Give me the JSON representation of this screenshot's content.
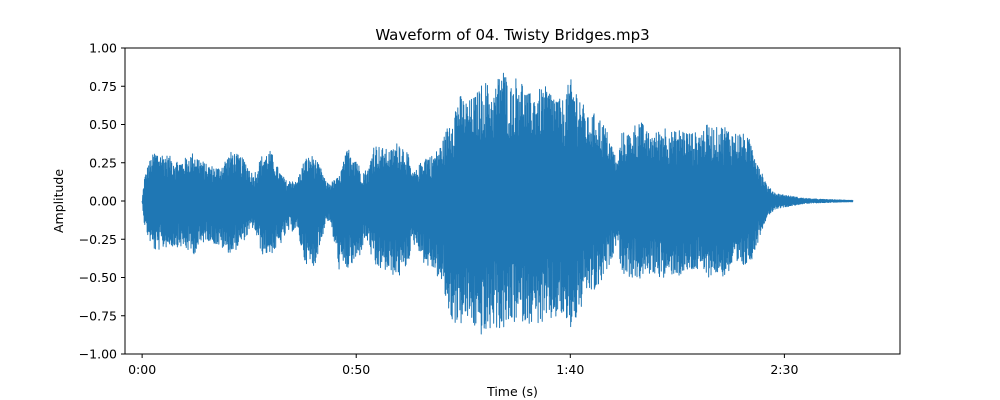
{
  "chart_data": {
    "type": "line",
    "title": "Waveform of 04. Twisty Bridges.mp3",
    "xlabel": "Time (s)",
    "ylabel": "Amplitude",
    "xlim": [
      -4,
      177
    ],
    "ylim": [
      -1.0,
      1.0
    ],
    "grid": false,
    "legend": "none",
    "series_color": "#1f77b4",
    "x_ticks": [
      {
        "value": 0,
        "label": "0:00"
      },
      {
        "value": 50,
        "label": "0:50"
      },
      {
        "value": 100,
        "label": "1:40"
      },
      {
        "value": 150,
        "label": "2:30"
      }
    ],
    "y_ticks": [
      {
        "value": 1.0,
        "label": "1.00"
      },
      {
        "value": 0.75,
        "label": "0.75"
      },
      {
        "value": 0.5,
        "label": "0.50"
      },
      {
        "value": 0.25,
        "label": "0.25"
      },
      {
        "value": 0.0,
        "label": "0.00"
      },
      {
        "value": -0.25,
        "label": "−0.25"
      },
      {
        "value": -0.5,
        "label": "−0.50"
      },
      {
        "value": -0.75,
        "label": "−0.75"
      },
      {
        "value": -1.0,
        "label": "−1.00"
      }
    ],
    "series": [
      {
        "envelope_time_s": [
          0,
          0.5,
          1.5,
          3,
          6,
          9,
          12,
          15,
          18,
          21,
          24,
          26,
          28,
          30,
          32,
          34,
          35,
          36,
          38,
          40,
          42,
          43,
          44,
          46,
          48,
          50,
          51,
          52,
          53,
          54,
          56,
          58,
          60,
          62,
          63,
          64,
          66,
          68,
          70,
          72,
          74,
          76,
          78,
          80,
          82,
          84,
          86,
          88,
          90,
          92,
          94,
          96,
          98,
          100,
          102,
          104,
          106,
          108,
          110,
          111,
          112,
          114,
          116,
          118,
          120,
          122,
          124,
          126,
          128,
          130,
          132,
          134,
          136,
          138,
          140,
          142,
          143,
          144,
          146,
          148,
          150,
          152,
          154,
          156,
          158,
          160,
          162,
          164,
          166
        ],
        "envelope_upper": [
          0.0,
          0.15,
          0.25,
          0.33,
          0.3,
          0.26,
          0.32,
          0.24,
          0.22,
          0.33,
          0.27,
          0.17,
          0.3,
          0.33,
          0.2,
          0.12,
          0.15,
          0.12,
          0.28,
          0.3,
          0.2,
          0.12,
          0.12,
          0.16,
          0.35,
          0.3,
          0.2,
          0.2,
          0.22,
          0.38,
          0.35,
          0.33,
          0.4,
          0.32,
          0.18,
          0.2,
          0.3,
          0.3,
          0.38,
          0.55,
          0.7,
          0.65,
          0.7,
          0.8,
          0.7,
          0.9,
          0.75,
          0.85,
          0.7,
          0.72,
          0.75,
          0.72,
          0.65,
          0.8,
          0.72,
          0.55,
          0.58,
          0.5,
          0.35,
          0.25,
          0.45,
          0.45,
          0.55,
          0.45,
          0.45,
          0.5,
          0.45,
          0.48,
          0.45,
          0.45,
          0.5,
          0.48,
          0.5,
          0.45,
          0.45,
          0.4,
          0.35,
          0.25,
          0.1,
          0.05,
          0.04,
          0.03,
          0.02,
          0.015,
          0.012,
          0.01,
          0.008,
          0.006,
          0.005
        ],
        "envelope_lower": [
          0.0,
          -0.15,
          -0.25,
          -0.33,
          -0.3,
          -0.3,
          -0.35,
          -0.25,
          -0.3,
          -0.35,
          -0.25,
          -0.17,
          -0.35,
          -0.35,
          -0.3,
          -0.2,
          -0.2,
          -0.18,
          -0.4,
          -0.45,
          -0.25,
          -0.12,
          -0.15,
          -0.45,
          -0.45,
          -0.4,
          -0.35,
          -0.25,
          -0.28,
          -0.45,
          -0.45,
          -0.48,
          -0.5,
          -0.42,
          -0.3,
          -0.28,
          -0.42,
          -0.45,
          -0.55,
          -0.78,
          -0.82,
          -0.78,
          -0.85,
          -0.9,
          -0.82,
          -0.85,
          -0.82,
          -0.78,
          -0.8,
          -0.8,
          -0.82,
          -0.78,
          -0.76,
          -0.85,
          -0.75,
          -0.6,
          -0.6,
          -0.5,
          -0.35,
          -0.25,
          -0.48,
          -0.5,
          -0.52,
          -0.48,
          -0.48,
          -0.52,
          -0.48,
          -0.5,
          -0.46,
          -0.46,
          -0.5,
          -0.48,
          -0.5,
          -0.45,
          -0.45,
          -0.4,
          -0.35,
          -0.25,
          -0.1,
          -0.05,
          -0.04,
          -0.03,
          -0.02,
          -0.015,
          -0.012,
          -0.01,
          -0.008,
          -0.006,
          -0.005
        ]
      }
    ]
  }
}
